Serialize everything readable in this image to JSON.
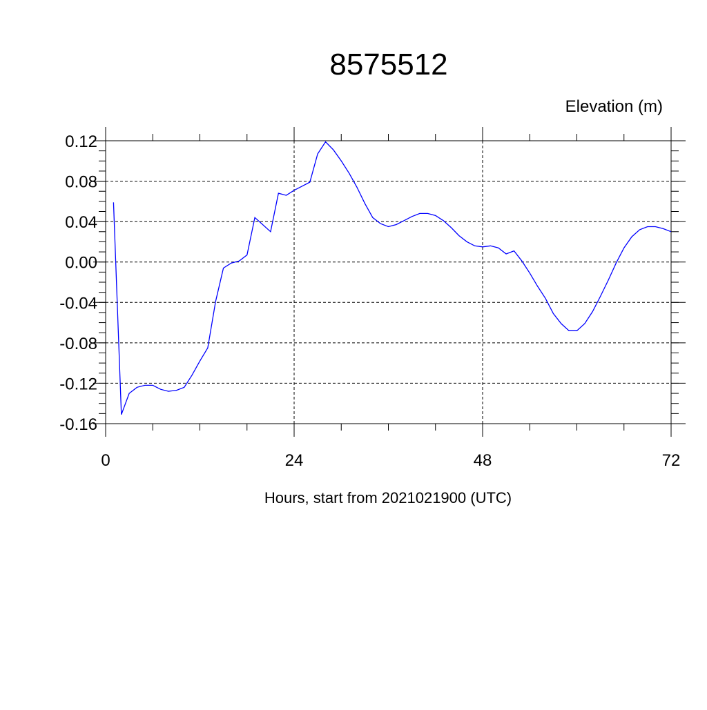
{
  "chart_data": {
    "type": "line",
    "title": "8575512",
    "y_axis_label": "Elevation (m)",
    "x_axis_label": "Hours, start from 2021021900 (UTC)",
    "x": [
      1,
      2,
      3,
      4,
      5,
      6,
      7,
      8,
      9,
      10,
      11,
      12,
      13,
      14,
      15,
      16,
      17,
      18,
      19,
      20,
      21,
      22,
      23,
      24,
      25,
      26,
      27,
      28,
      29,
      30,
      31,
      32,
      33,
      34,
      35,
      36,
      37,
      38,
      39,
      40,
      41,
      42,
      43,
      44,
      45,
      46,
      47,
      48,
      49,
      50,
      51,
      52,
      53,
      54,
      55,
      56,
      57,
      58,
      59,
      60,
      61,
      62,
      63,
      64,
      65,
      66,
      67,
      68,
      69,
      70,
      71,
      72
    ],
    "series": [
      {
        "color": "#0000ff",
        "values": [
          0.059,
          -0.151,
          -0.13,
          -0.124,
          -0.122,
          -0.122,
          -0.126,
          -0.128,
          -0.127,
          -0.124,
          -0.112,
          -0.098,
          -0.085,
          -0.039,
          -0.006,
          -0.001,
          0.001,
          0.007,
          0.044,
          0.037,
          0.03,
          0.068,
          0.066,
          0.071,
          0.075,
          0.079,
          0.107,
          0.119,
          0.111,
          0.1,
          0.088,
          0.074,
          0.058,
          0.044,
          0.038,
          0.035,
          0.037,
          0.041,
          0.045,
          0.048,
          0.048,
          0.046,
          0.041,
          0.034,
          0.026,
          0.02,
          0.016,
          0.015,
          0.016,
          0.014,
          0.008,
          0.011,
          0.001,
          -0.011,
          -0.024,
          -0.036,
          -0.051,
          -0.061,
          -0.068,
          -0.068,
          -0.061,
          -0.049,
          -0.034,
          -0.018,
          -0.001,
          0.014,
          0.025,
          0.032,
          0.035,
          0.035,
          0.033,
          0.03
        ]
      }
    ],
    "xlim": [
      0,
      72
    ],
    "xticks": [
      0,
      24,
      48,
      72
    ],
    "ylim": [
      -0.16,
      0.12
    ],
    "yticks": [
      -0.16,
      -0.12,
      -0.08,
      -0.04,
      {
        "value": 0,
        "label": "0.00"
      },
      0.04,
      0.08,
      0.12
    ],
    "grid": true
  }
}
